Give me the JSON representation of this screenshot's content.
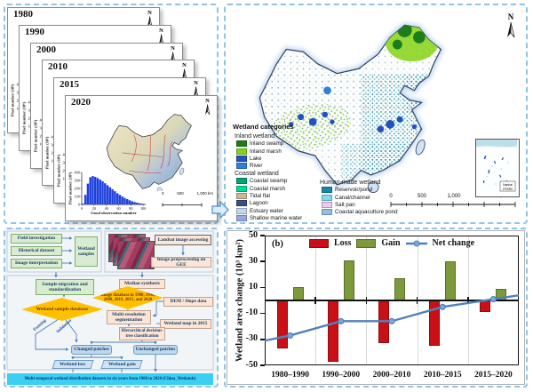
{
  "panels": {
    "maps_stack": {
      "years": [
        "1980",
        "1990",
        "2000",
        "2010",
        "2015",
        "2020"
      ],
      "north_label": "N",
      "scalebar_labels": [
        "0",
        "500",
        "1,000 km"
      ]
    },
    "main_map": {
      "north_label": "N",
      "legend": {
        "title": "Wetland categories",
        "groups": [
          {
            "name": "Inland wetland",
            "items": [
              {
                "label": "Inland swamp",
                "color": "#1b7e1b"
              },
              {
                "label": "Inland marsh",
                "color": "#86d214"
              },
              {
                "label": "Lake",
                "color": "#2052c0"
              },
              {
                "label": "River",
                "color": "#2e7fdd"
              }
            ]
          },
          {
            "name": "Coastal wetland",
            "items": [
              {
                "label": "Coastal swamp",
                "color": "#00a375"
              },
              {
                "label": "Coastal marsh",
                "color": "#00db94"
              },
              {
                "label": "Tidal flat",
                "color": "#cbb893"
              },
              {
                "label": "Lagoon",
                "color": "#3c4c88"
              },
              {
                "label": "Estuary water",
                "color": "#c3d6ee"
              },
              {
                "label": "Shallow marine water",
                "color": "#93a9de"
              }
            ]
          },
          {
            "name": "Human-made wetland",
            "items": [
              {
                "label": "Reservoir/pond",
                "color": "#1787a8"
              },
              {
                "label": "Canal/channel",
                "color": "#7fd9f0"
              },
              {
                "label": "Salt pan",
                "color": "#efc7ef"
              },
              {
                "label": "Coastal aquaculture pond",
                "color": "#8fbee8"
              }
            ]
          }
        ]
      },
      "scalebar_labels": [
        "0",
        "500",
        "1,000",
        "2,000 km"
      ],
      "inset_label": [
        "Nanhai",
        "Zhudao"
      ]
    },
    "flowchart": {
      "sources": [
        "Field investigation",
        "Historical dataset",
        "Image interpretation"
      ],
      "wetland_samples": "Wetland samples",
      "landsat_accessing": "Landsat image accessing",
      "gee_preprocessing": "Image preprocessing on GEE",
      "sample_migration": "Sample migration and standardization",
      "median_synthesis": "Median synthesis",
      "sample_database": "Wetland sample database",
      "image_database": "Image database in 1980, 1990, 2000, 2010, 2015, and 2020",
      "training": "Training",
      "validation": "Validation",
      "dem_slope": "DEM / Slope data",
      "segmentation": "Multi-resolution segmentation",
      "wetland_map_2015": "Wetland map in 2015",
      "classification": "Hierarchical decision-tree classification",
      "changed": "Changed patches",
      "unchanged": "Unchanged patches",
      "loss": "Wetland loss",
      "gain": "Wetland gain",
      "banner": "Multi-temporal wetland distribution datasets in six years from 1980 to 2020 (China_Wetlands)"
    },
    "chart_b": {
      "panel_label": "(b)"
    }
  },
  "chart_data": [
    {
      "id": "wetland-area-change",
      "type": "bar",
      "panel_label": "(b)",
      "categories": [
        "1980–1990",
        "1990–2000",
        "2000–2010",
        "2010–2015",
        "2015–2020"
      ],
      "series": [
        {
          "name": "Loss",
          "type": "bar",
          "color": "#c81016",
          "values": [
            -37,
            -47,
            -33,
            -35,
            -9
          ]
        },
        {
          "name": "Gain",
          "type": "bar",
          "color": "#7c9a3c",
          "values": [
            10,
            31,
            17,
            30,
            9
          ]
        },
        {
          "name": "Net change",
          "type": "line",
          "color": "#4f81bd",
          "values": [
            -27,
            -16,
            -16,
            -5,
            1
          ]
        }
      ],
      "ylabel": "Wetland area change (10³ km²)",
      "ylim": [
        -50,
        50
      ],
      "yticks": [
        50,
        30,
        10,
        -10,
        -30,
        -50
      ],
      "grid": "vertical-category-separators",
      "legend_position": "top-inside"
    },
    {
      "id": "good-observation-histogram",
      "type": "bar",
      "xlabel": "Good observation number",
      "ylabel": "Pixel number (10⁶)",
      "xticks": [
        0,
        20,
        40,
        60,
        80,
        100
      ],
      "yticks": [
        0,
        100,
        200,
        300,
        400
      ],
      "x_bin_width": 4,
      "values": [
        10,
        120,
        260,
        340,
        355,
        345,
        330,
        310,
        290,
        265,
        240,
        215,
        190,
        165,
        140,
        120,
        100,
        82,
        66,
        52,
        40,
        30,
        22,
        15,
        10,
        6
      ],
      "bar_color": "#1f41dc"
    }
  ]
}
